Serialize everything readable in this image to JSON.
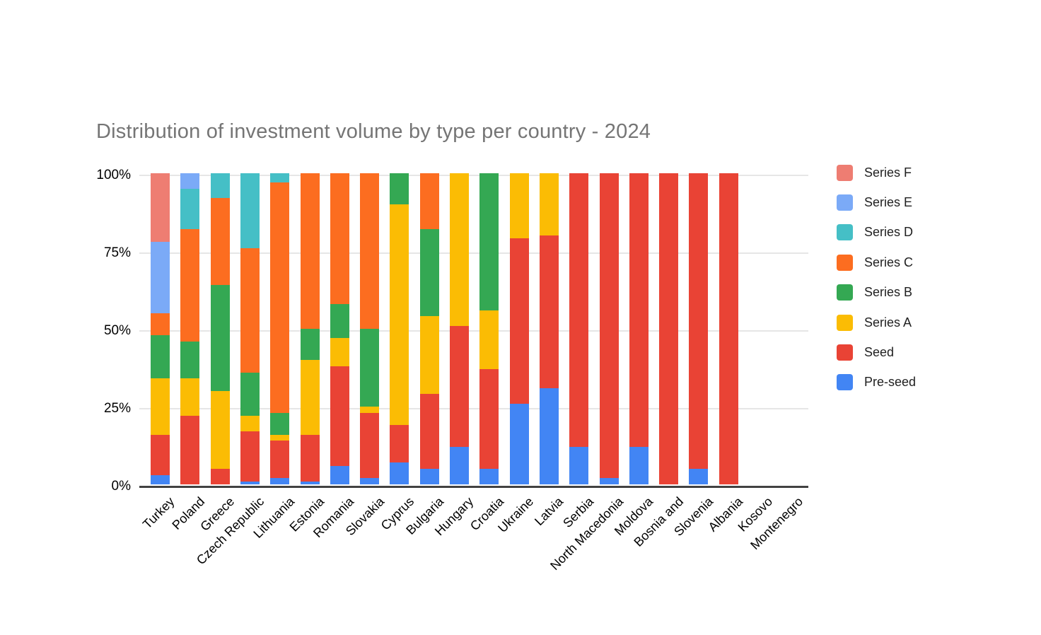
{
  "title": "Distribution of investment volume by type per country - 2024",
  "y_axis": {
    "ticks": [
      {
        "label": "100%",
        "value": 100
      },
      {
        "label": "75%",
        "value": 75
      },
      {
        "label": "50%",
        "value": 50
      },
      {
        "label": "25%",
        "value": 25
      },
      {
        "label": "0%",
        "value": 0
      }
    ]
  },
  "legend": {
    "position": "right",
    "items": [
      {
        "label": "Series F",
        "color": "#EE7D72"
      },
      {
        "label": "Series E",
        "color": "#7BAAF7"
      },
      {
        "label": "Series D",
        "color": "#45BFC6"
      },
      {
        "label": "Series C",
        "color": "#FC6D20"
      },
      {
        "label": "Series B",
        "color": "#34A853"
      },
      {
        "label": "Series A",
        "color": "#FBBC04"
      },
      {
        "label": "Seed",
        "color": "#E94335"
      },
      {
        "label": "Pre-seed",
        "color": "#4285F4"
      }
    ]
  },
  "chart_data": {
    "type": "bar",
    "subtype": "stacked-100-percent-column",
    "title": "Distribution of investment volume by type per country - 2024",
    "xlabel": "",
    "ylabel": "",
    "ylim": [
      0,
      100
    ],
    "grid": true,
    "legend_position": "right",
    "categories": [
      "Turkey",
      "Poland",
      "Greece",
      "Czech Republic",
      "Lithuania",
      "Estonia",
      "Romania",
      "Slovakia",
      "Cyprus",
      "Bulgaria",
      "Hungary",
      "Croatia",
      "Ukraine",
      "Latvia",
      "Serbia",
      "North Macedonia",
      "Moldova",
      "Bosnia and",
      "Slovenia",
      "Albania",
      "Kosovo",
      "Montenegro"
    ],
    "series": [
      {
        "name": "Pre-seed",
        "color": "#4285F4",
        "values": [
          3,
          0,
          0,
          1,
          2,
          1,
          6,
          2,
          7,
          5,
          12,
          5,
          26,
          31,
          12,
          2,
          12,
          0,
          5,
          0,
          0,
          0
        ]
      },
      {
        "name": "Seed",
        "color": "#E94335",
        "values": [
          13,
          22,
          5,
          16,
          12,
          15,
          32,
          21,
          12,
          24,
          39,
          32,
          53,
          49,
          88,
          98,
          88,
          100,
          95,
          100,
          0,
          0
        ]
      },
      {
        "name": "Series A",
        "color": "#FBBC04",
        "values": [
          18,
          12,
          25,
          5,
          2,
          24,
          9,
          2,
          71,
          25,
          49,
          19,
          21,
          20,
          0,
          0,
          0,
          0,
          0,
          0,
          0,
          0
        ]
      },
      {
        "name": "Series B",
        "color": "#34A853",
        "values": [
          14,
          12,
          34,
          14,
          7,
          10,
          11,
          25,
          10,
          28,
          0,
          44,
          0,
          0,
          0,
          0,
          0,
          0,
          0,
          0,
          0,
          0
        ]
      },
      {
        "name": "Series C",
        "color": "#FC6D20",
        "values": [
          7,
          36,
          28,
          40,
          74,
          50,
          42,
          50,
          0,
          18,
          0,
          0,
          0,
          0,
          0,
          0,
          0,
          0,
          0,
          0,
          0,
          0
        ]
      },
      {
        "name": "Series D",
        "color": "#45BFC6",
        "values": [
          0,
          13,
          8,
          24,
          3,
          0,
          0,
          0,
          0,
          0,
          0,
          0,
          0,
          0,
          0,
          0,
          0,
          0,
          0,
          0,
          0,
          0
        ]
      },
      {
        "name": "Series E",
        "color": "#7BAAF7",
        "values": [
          23,
          5,
          0,
          0,
          0,
          0,
          0,
          0,
          0,
          0,
          0,
          0,
          0,
          0,
          0,
          0,
          0,
          0,
          0,
          0,
          0,
          0
        ]
      },
      {
        "name": "Series F",
        "color": "#EE7D72",
        "values": [
          22,
          0,
          0,
          0,
          0,
          0,
          0,
          0,
          0,
          0,
          0,
          0,
          0,
          0,
          0,
          0,
          0,
          0,
          0,
          0,
          0,
          0
        ]
      }
    ]
  }
}
